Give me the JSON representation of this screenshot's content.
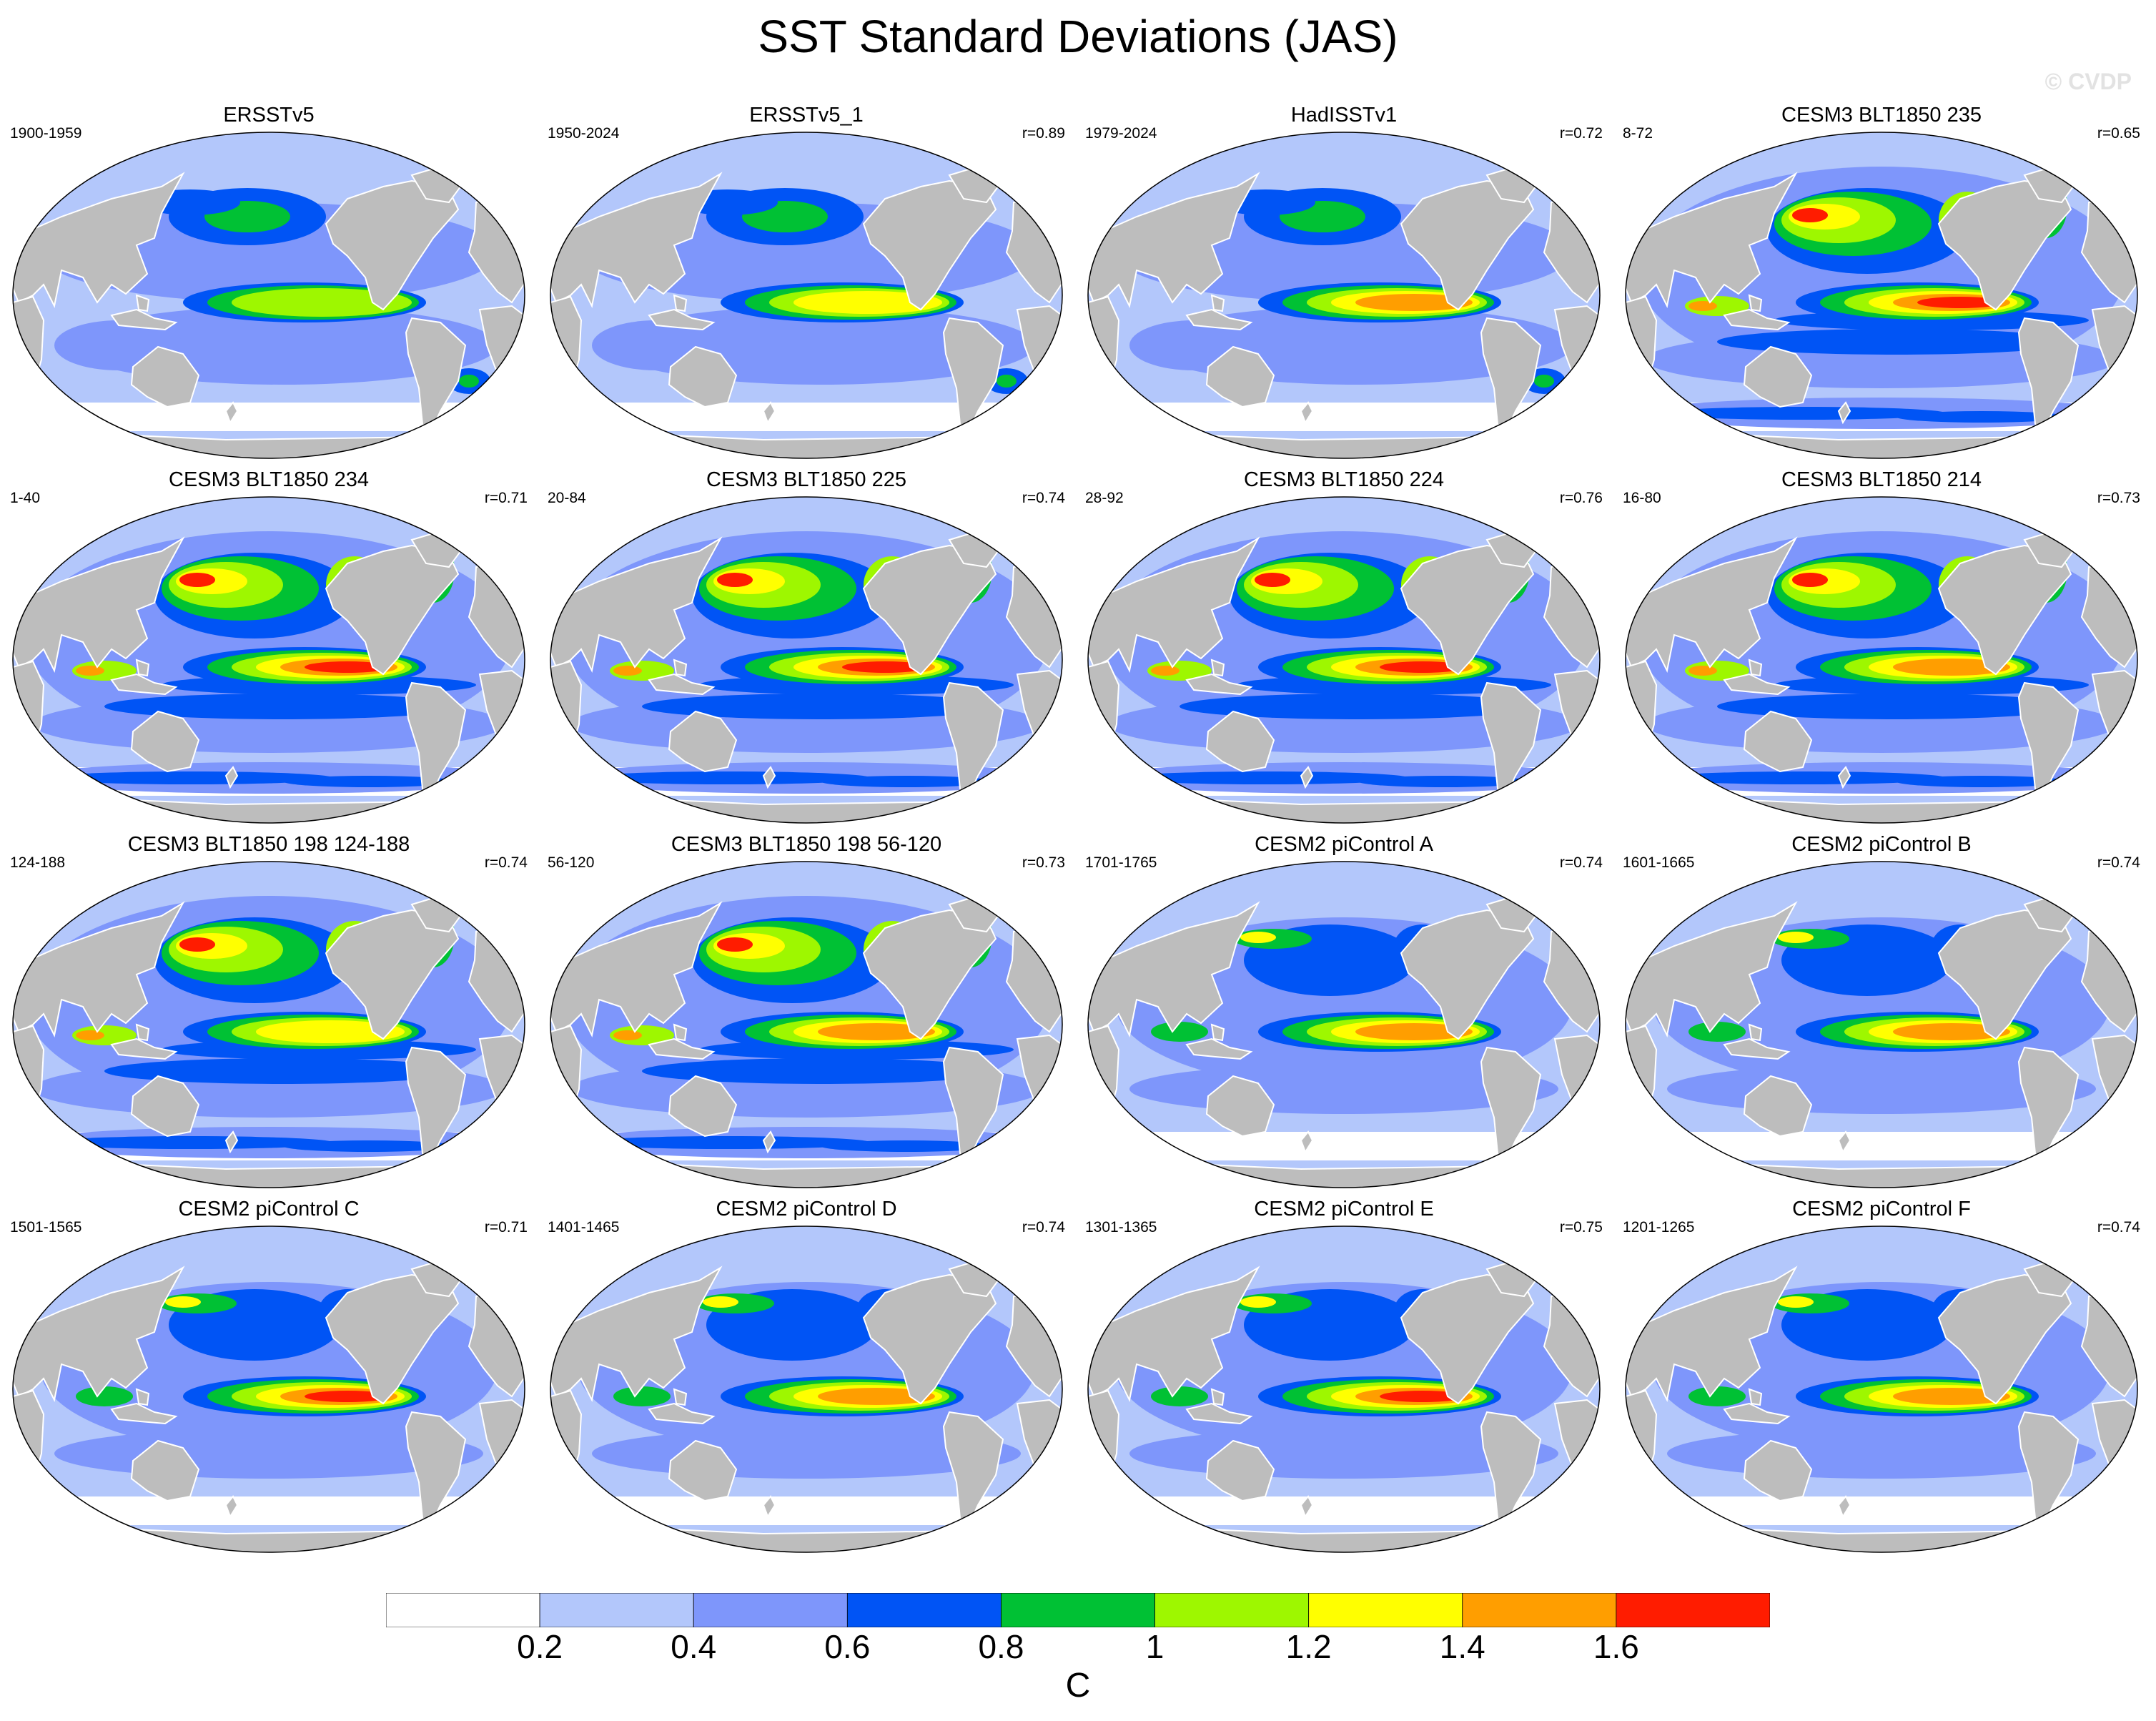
{
  "title": "SST Standard Deviations (JAS)",
  "watermark": "© CVDP",
  "colors": {
    "ocean_levels": [
      "#ffffff",
      "#b3c7fb",
      "#7e96fb",
      "#0054f5",
      "#00c134",
      "#9ef700",
      "#ffff00",
      "#ff9e00",
      "#ff1c00"
    ],
    "land": "#bdbdbd",
    "coastline": "#ffffff"
  },
  "panels": [
    {
      "title": "ERSSTv5",
      "years": "1900-1959",
      "corr": ""
    },
    {
      "title": "ERSSTv5_1",
      "years": "1950-2024",
      "corr": "r=0.89"
    },
    {
      "title": "HadISSTv1",
      "years": "1979-2024",
      "corr": "r=0.72"
    },
    {
      "title": "CESM3 BLT1850 235",
      "years": "8-72",
      "corr": "r=0.65"
    },
    {
      "title": "CESM3 BLT1850 234",
      "years": "1-40",
      "corr": "r=0.71"
    },
    {
      "title": "CESM3 BLT1850 225",
      "years": "20-84",
      "corr": "r=0.74"
    },
    {
      "title": "CESM3 BLT1850 224",
      "years": "28-92",
      "corr": "r=0.76"
    },
    {
      "title": "CESM3 BLT1850 214",
      "years": "16-80",
      "corr": "r=0.73"
    },
    {
      "title": "CESM3 BLT1850 198 124-188",
      "years": "124-188",
      "corr": "r=0.74"
    },
    {
      "title": "CESM3 BLT1850 198 56-120",
      "years": "56-120",
      "corr": "r=0.73"
    },
    {
      "title": "CESM2 piControl A",
      "years": "1701-1765",
      "corr": "r=0.74"
    },
    {
      "title": "CESM2 piControl B",
      "years": "1601-1665",
      "corr": "r=0.74"
    },
    {
      "title": "CESM2 piControl C",
      "years": "1501-1565",
      "corr": "r=0.71"
    },
    {
      "title": "CESM2 piControl D",
      "years": "1401-1465",
      "corr": "r=0.74"
    },
    {
      "title": "CESM2 piControl E",
      "years": "1301-1365",
      "corr": "r=0.75"
    },
    {
      "title": "CESM2 piControl F",
      "years": "1201-1265",
      "corr": "r=0.74"
    }
  ],
  "colorbar": {
    "labels": [
      "0.2",
      "0.4",
      "0.6",
      "0.8",
      "1",
      "1.2",
      "1.4",
      "1.6"
    ],
    "units": "C"
  }
}
